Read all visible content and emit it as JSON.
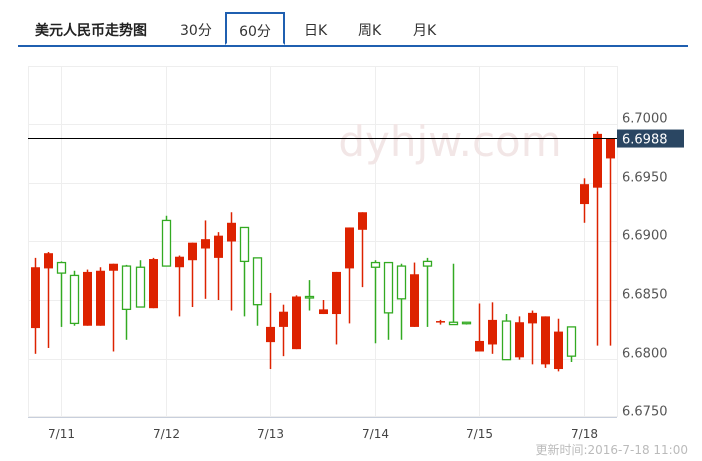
{
  "header": {
    "title": "美元人民币走势图",
    "tabs": [
      {
        "label": "30分",
        "active": false
      },
      {
        "label": "60分",
        "active": true
      },
      {
        "label": "日K",
        "active": false
      },
      {
        "label": "周K",
        "active": false
      },
      {
        "label": "月K",
        "active": false
      }
    ],
    "accent_color": "#1f5fb0"
  },
  "watermark": "dyhjw.com",
  "footer": {
    "updated": "更新时间:2016-7-18 11:00"
  },
  "chart_data": {
    "type": "candlestick",
    "ylim": [
      6.675,
      6.705
    ],
    "yticks": [
      "6.6750",
      "6.6800",
      "6.6850",
      "6.6900",
      "6.6950",
      "6.7000"
    ],
    "xticks": [
      {
        "label": "7/11",
        "index": 2
      },
      {
        "label": "7/12",
        "index": 10
      },
      {
        "label": "7/13",
        "index": 18
      },
      {
        "label": "7/14",
        "index": 26
      },
      {
        "label": "7/15",
        "index": 34
      },
      {
        "label": "7/18",
        "index": 42
      }
    ],
    "current_price": "6.6988",
    "colors": {
      "up": "#dd2200",
      "down": "#33aa22",
      "grid": "#eeeeee",
      "price_badge": "#2a4662"
    },
    "grid": true,
    "candles": [
      {
        "o": 6.6826,
        "h": 6.6886,
        "l": 6.6804,
        "c": 6.6878
      },
      {
        "o": 6.6877,
        "h": 6.6891,
        "l": 6.6809,
        "c": 6.689
      },
      {
        "o": 6.6882,
        "h": 6.6883,
        "l": 6.6827,
        "c": 6.6873
      },
      {
        "o": 6.6871,
        "h": 6.6875,
        "l": 6.6828,
        "c": 6.683
      },
      {
        "o": 6.6828,
        "h": 6.6876,
        "l": 6.6828,
        "c": 6.6874
      },
      {
        "o": 6.6828,
        "h": 6.6878,
        "l": 6.6828,
        "c": 6.6875
      },
      {
        "o": 6.6875,
        "h": 6.6881,
        "l": 6.6806,
        "c": 6.6881
      },
      {
        "o": 6.6879,
        "h": 6.688,
        "l": 6.6816,
        "c": 6.6842
      },
      {
        "o": 6.6878,
        "h": 6.6884,
        "l": 6.6844,
        "c": 6.6844
      },
      {
        "o": 6.6843,
        "h": 6.6886,
        "l": 6.6843,
        "c": 6.6885
      },
      {
        "o": 6.6918,
        "h": 6.6922,
        "l": 6.6879,
        "c": 6.6879
      },
      {
        "o": 6.6878,
        "h": 6.6888,
        "l": 6.6836,
        "c": 6.6887
      },
      {
        "o": 6.6884,
        "h": 6.6899,
        "l": 6.6844,
        "c": 6.6899
      },
      {
        "o": 6.6894,
        "h": 6.6918,
        "l": 6.6851,
        "c": 6.6902
      },
      {
        "o": 6.6886,
        "h": 6.6908,
        "l": 6.685,
        "c": 6.6905
      },
      {
        "o": 6.69,
        "h": 6.6925,
        "l": 6.6841,
        "c": 6.6916
      },
      {
        "o": 6.6912,
        "h": 6.6912,
        "l": 6.6836,
        "c": 6.6883
      },
      {
        "o": 6.6886,
        "h": 6.6886,
        "l": 6.6828,
        "c": 6.6846
      },
      {
        "o": 6.6814,
        "h": 6.6856,
        "l": 6.6791,
        "c": 6.6827
      },
      {
        "o": 6.6827,
        "h": 6.6846,
        "l": 6.6802,
        "c": 6.684
      },
      {
        "o": 6.6808,
        "h": 6.6854,
        "l": 6.6808,
        "c": 6.6853
      },
      {
        "o": 6.6853,
        "h": 6.6867,
        "l": 6.6841,
        "c": 6.6853,
        "down": true
      },
      {
        "o": 6.6838,
        "h": 6.685,
        "l": 6.6838,
        "c": 6.6842
      },
      {
        "o": 6.6838,
        "h": 6.6874,
        "l": 6.6812,
        "c": 6.6874
      },
      {
        "o": 6.6877,
        "h": 6.6912,
        "l": 6.683,
        "c": 6.6912
      },
      {
        "o": 6.691,
        "h": 6.6925,
        "l": 6.6861,
        "c": 6.6925
      },
      {
        "o": 6.6882,
        "h": 6.6884,
        "l": 6.6813,
        "c": 6.6878
      },
      {
        "o": 6.6882,
        "h": 6.6882,
        "l": 6.6816,
        "c": 6.6839
      },
      {
        "o": 6.6879,
        "h": 6.6881,
        "l": 6.6816,
        "c": 6.6851
      },
      {
        "o": 6.6827,
        "h": 6.6882,
        "l": 6.6827,
        "c": 6.6872
      },
      {
        "o": 6.6883,
        "h": 6.6886,
        "l": 6.6827,
        "c": 6.6879
      },
      {
        "o": 6.6831,
        "h": 6.6833,
        "l": 6.6829,
        "c": 6.6832
      },
      {
        "o": 6.6831,
        "h": 6.6881,
        "l": 6.6829,
        "c": 6.6829
      },
      {
        "o": 6.6831,
        "h": 6.6831,
        "l": 6.6829,
        "c": 6.683
      },
      {
        "o": 6.6806,
        "h": 6.6847,
        "l": 6.6806,
        "c": 6.6815
      },
      {
        "o": 6.6812,
        "h": 6.6848,
        "l": 6.6804,
        "c": 6.6833
      },
      {
        "o": 6.6832,
        "h": 6.6838,
        "l": 6.6799,
        "c": 6.6799
      },
      {
        "o": 6.6801,
        "h": 6.6836,
        "l": 6.6799,
        "c": 6.6831
      },
      {
        "o": 6.683,
        "h": 6.6841,
        "l": 6.6795,
        "c": 6.6839
      },
      {
        "o": 6.6795,
        "h": 6.6836,
        "l": 6.6792,
        "c": 6.6836
      },
      {
        "o": 6.6791,
        "h": 6.6834,
        "l": 6.6789,
        "c": 6.6823
      },
      {
        "o": 6.6827,
        "h": 6.6827,
        "l": 6.6797,
        "c": 6.6802
      },
      {
        "o": 6.6932,
        "h": 6.6954,
        "l": 6.6916,
        "c": 6.6949
      },
      {
        "o": 6.6946,
        "h": 6.6994,
        "l": 6.6811,
        "c": 6.6992
      },
      {
        "o": 6.6971,
        "h": 6.6988,
        "l": 6.6811,
        "c": 6.6988
      }
    ]
  }
}
